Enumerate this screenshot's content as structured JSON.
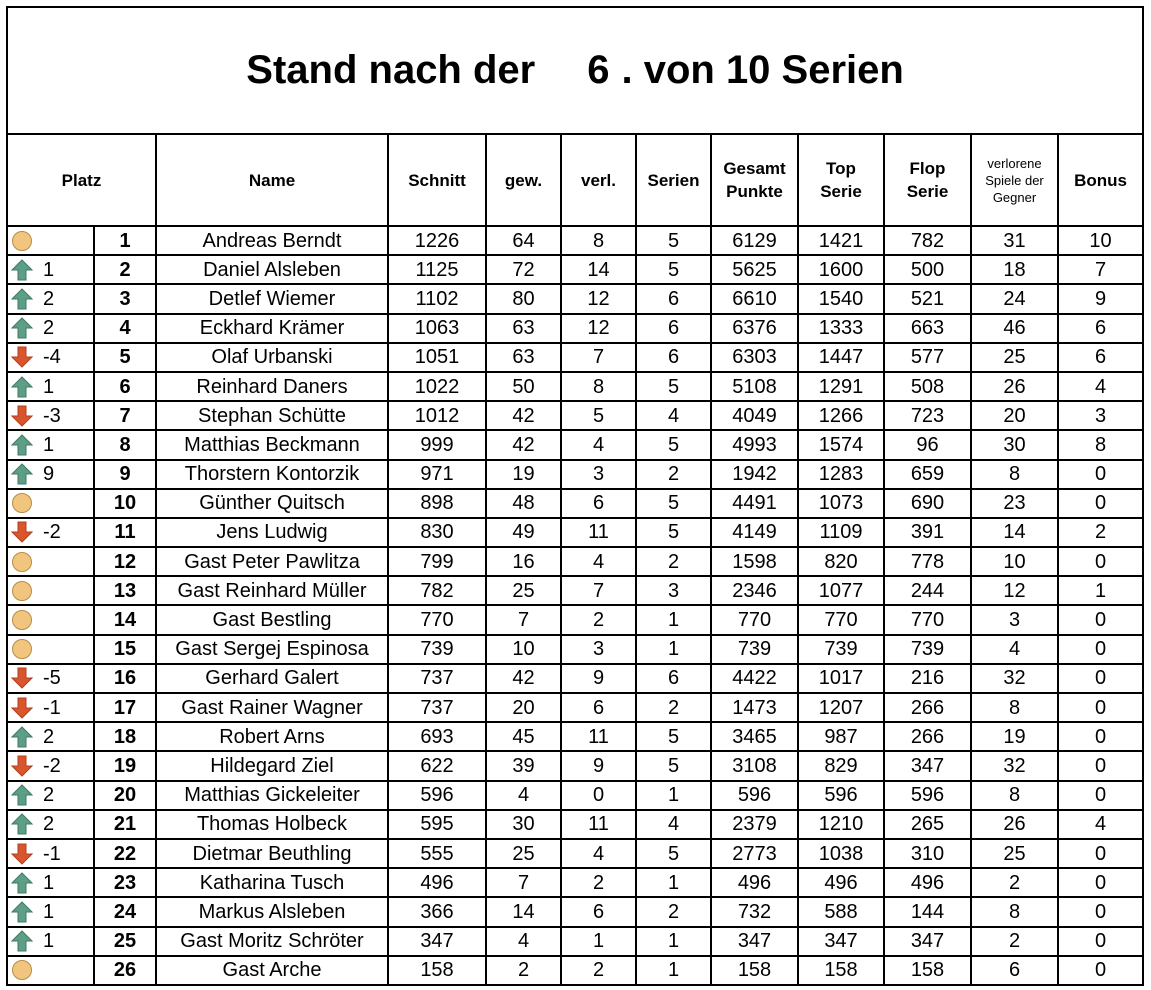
{
  "title": {
    "prefix": "Stand nach der",
    "series_done": "6",
    "suffix": ". von 10 Serien"
  },
  "table": {
    "headers": [
      "Platz",
      "Name",
      "Schnitt",
      "gew.",
      "verl.",
      "Serien",
      "Gesamt\nPunkte",
      "Top\nSerie",
      "Flop\nSerie",
      "verlorene\nSpiele der\nGegner",
      "Bonus"
    ],
    "rows": [
      {
        "trend": "same",
        "platz": 1,
        "name": "Andreas Berndt",
        "values": [
          1226,
          64,
          8,
          5,
          6129,
          1421,
          782,
          31,
          10
        ]
      },
      {
        "trend": "up",
        "change": 1,
        "platz": 2,
        "name": "Daniel Alsleben",
        "values": [
          1125,
          72,
          14,
          5,
          5625,
          1600,
          500,
          18,
          7
        ]
      },
      {
        "trend": "up",
        "change": 2,
        "platz": 3,
        "name": "Detlef Wiemer",
        "values": [
          1102,
          80,
          12,
          6,
          6610,
          1540,
          521,
          24,
          9
        ]
      },
      {
        "trend": "up",
        "change": 2,
        "platz": 4,
        "name": "Eckhard Krämer",
        "values": [
          1063,
          63,
          12,
          6,
          6376,
          1333,
          663,
          46,
          6
        ]
      },
      {
        "trend": "down",
        "change": -4,
        "platz": 5,
        "name": "Olaf Urbanski",
        "values": [
          1051,
          63,
          7,
          6,
          6303,
          1447,
          577,
          25,
          6
        ]
      },
      {
        "trend": "up",
        "change": 1,
        "platz": 6,
        "name": "Reinhard Daners",
        "values": [
          1022,
          50,
          8,
          5,
          5108,
          1291,
          508,
          26,
          4
        ]
      },
      {
        "trend": "down",
        "change": -3,
        "platz": 7,
        "name": "Stephan Schütte",
        "values": [
          1012,
          42,
          5,
          4,
          4049,
          1266,
          723,
          20,
          3
        ]
      },
      {
        "trend": "up",
        "change": 1,
        "platz": 8,
        "name": "Matthias Beckmann",
        "values": [
          999,
          42,
          4,
          5,
          4993,
          1574,
          96,
          30,
          8
        ]
      },
      {
        "trend": "up",
        "change": 9,
        "platz": 9,
        "name": "Thorstern Kontorzik",
        "values": [
          971,
          19,
          3,
          2,
          1942,
          1283,
          659,
          8,
          0
        ]
      },
      {
        "trend": "same",
        "platz": 10,
        "name": "Günther Quitsch",
        "values": [
          898,
          48,
          6,
          5,
          4491,
          1073,
          690,
          23,
          0
        ]
      },
      {
        "trend": "down",
        "change": -2,
        "platz": 11,
        "name": "Jens Ludwig",
        "values": [
          830,
          49,
          11,
          5,
          4149,
          1109,
          391,
          14,
          2
        ]
      },
      {
        "trend": "same",
        "platz": 12,
        "name": "Gast Peter Pawlitza",
        "values": [
          799,
          16,
          4,
          2,
          1598,
          820,
          778,
          10,
          0
        ]
      },
      {
        "trend": "same",
        "platz": 13,
        "name": "Gast Reinhard Müller",
        "values": [
          782,
          25,
          7,
          3,
          2346,
          1077,
          244,
          12,
          1
        ]
      },
      {
        "trend": "same",
        "platz": 14,
        "name": "Gast Bestling",
        "values": [
          770,
          7,
          2,
          1,
          770,
          770,
          770,
          3,
          0
        ]
      },
      {
        "trend": "same",
        "platz": 15,
        "name": "Gast Sergej Espinosa",
        "values": [
          739,
          10,
          3,
          1,
          739,
          739,
          739,
          4,
          0
        ]
      },
      {
        "trend": "down",
        "change": -5,
        "platz": 16,
        "name": "Gerhard Galert",
        "values": [
          737,
          42,
          9,
          6,
          4422,
          1017,
          216,
          32,
          0
        ]
      },
      {
        "trend": "down",
        "change": -1,
        "platz": 17,
        "name": "Gast Rainer Wagner",
        "values": [
          737,
          20,
          6,
          2,
          1473,
          1207,
          266,
          8,
          0
        ]
      },
      {
        "trend": "up",
        "change": 2,
        "platz": 18,
        "name": "Robert Arns",
        "values": [
          693,
          45,
          11,
          5,
          3465,
          987,
          266,
          19,
          0
        ]
      },
      {
        "trend": "down",
        "change": -2,
        "platz": 19,
        "name": "Hildegard Ziel",
        "values": [
          622,
          39,
          9,
          5,
          3108,
          829,
          347,
          32,
          0
        ]
      },
      {
        "trend": "up",
        "change": 2,
        "platz": 20,
        "name": "Matthias Gickeleiter",
        "values": [
          596,
          4,
          0,
          1,
          596,
          596,
          596,
          8,
          0
        ]
      },
      {
        "trend": "up",
        "change": 2,
        "platz": 21,
        "name": "Thomas Holbeck",
        "values": [
          595,
          30,
          11,
          4,
          2379,
          1210,
          265,
          26,
          4
        ]
      },
      {
        "trend": "down",
        "change": -1,
        "platz": 22,
        "name": "Dietmar Beuthling",
        "values": [
          555,
          25,
          4,
          5,
          2773,
          1038,
          310,
          25,
          0
        ]
      },
      {
        "trend": "up",
        "change": 1,
        "platz": 23,
        "name": "Katharina Tusch",
        "values": [
          496,
          7,
          2,
          1,
          496,
          496,
          496,
          2,
          0
        ]
      },
      {
        "trend": "up",
        "change": 1,
        "platz": 24,
        "name": "Markus Alsleben",
        "values": [
          366,
          14,
          6,
          2,
          732,
          588,
          144,
          8,
          0
        ]
      },
      {
        "trend": "up",
        "change": 1,
        "platz": 25,
        "name": "Gast Moritz Schröter",
        "values": [
          347,
          4,
          1,
          1,
          347,
          347,
          347,
          2,
          0
        ]
      },
      {
        "trend": "same",
        "platz": 26,
        "name": "Gast Arche",
        "values": [
          158,
          2,
          2,
          1,
          158,
          158,
          158,
          6,
          0
        ]
      }
    ]
  }
}
